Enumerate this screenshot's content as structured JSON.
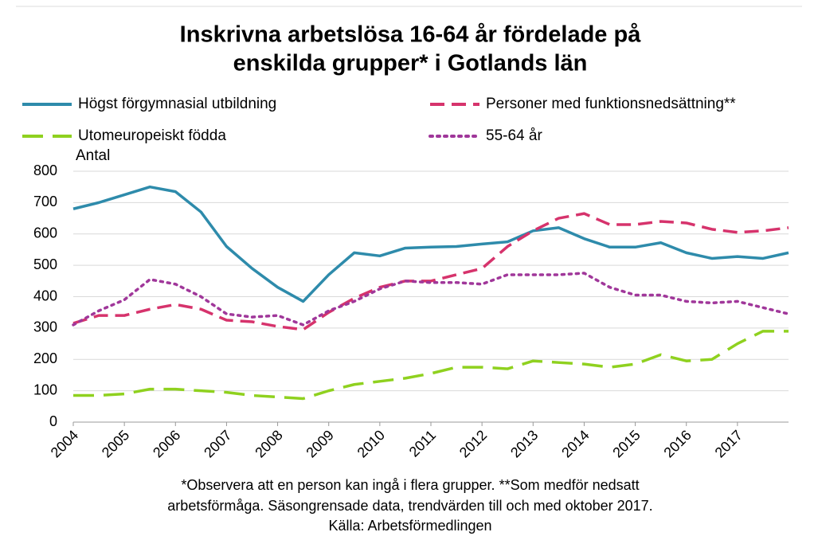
{
  "chart_data": {
    "type": "line",
    "title": [
      "Inskrivna arbetslösa 16-64 år fördelade på",
      "enskilda grupper* i Gotlands län"
    ],
    "y_label": "Antal",
    "footnote": [
      "*Observera att en person kan ingå i flera grupper. **Som medför nedsatt",
      "arbetsförmåga. Säsongrensade data, trendvärden till och med oktober 2017.",
      "Källa: Arbetsförmedlingen"
    ],
    "x": [
      2004,
      2004.5,
      2005,
      2005.5,
      2006,
      2006.5,
      2007,
      2007.5,
      2008,
      2008.5,
      2009,
      2009.5,
      2010,
      2010.5,
      2011,
      2011.5,
      2012,
      2012.5,
      2013,
      2013.5,
      2014,
      2014.5,
      2015,
      2015.5,
      2016,
      2016.5,
      2017,
      2017.5,
      2018
    ],
    "series": [
      {
        "name": "Högst förgymnasial utbildning",
        "color": "#2e8bab",
        "dash": "solid",
        "values": [
          680,
          700,
          725,
          750,
          735,
          670,
          560,
          490,
          430,
          385,
          470,
          540,
          530,
          555,
          558,
          560,
          568,
          575,
          610,
          620,
          585,
          558,
          558,
          572,
          540,
          522,
          528,
          522,
          540
        ]
      },
      {
        "name": "Personer med funktionsnedsättning**",
        "color": "#d6336c",
        "dash": "dashed",
        "values": [
          315,
          340,
          340,
          360,
          375,
          360,
          325,
          320,
          305,
          295,
          350,
          395,
          430,
          450,
          450,
          470,
          490,
          560,
          610,
          650,
          665,
          630,
          630,
          640,
          635,
          615,
          605,
          610,
          620
        ]
      },
      {
        "name": "Utomeuropeiskt födda",
        "color": "#8fd11f",
        "dash": "longdash",
        "values": [
          85,
          85,
          90,
          105,
          105,
          100,
          95,
          85,
          80,
          75,
          100,
          120,
          130,
          140,
          155,
          175,
          175,
          170,
          195,
          190,
          185,
          175,
          185,
          215,
          195,
          200,
          250,
          290,
          290
        ]
      },
      {
        "name": "55-64 år",
        "color": "#a0379a",
        "dash": "dotted",
        "values": [
          310,
          355,
          390,
          455,
          440,
          400,
          345,
          335,
          340,
          310,
          355,
          385,
          425,
          450,
          445,
          445,
          440,
          470,
          470,
          470,
          475,
          430,
          405,
          405,
          385,
          380,
          385,
          365,
          345
        ]
      }
    ],
    "xlim": [
      2004,
      2018
    ],
    "xticks": [
      2004,
      2005,
      2006,
      2007,
      2008,
      2009,
      2010,
      2011,
      2012,
      2013,
      2014,
      2015,
      2016,
      2017
    ],
    "ylim": [
      0,
      800
    ],
    "yticks": [
      0,
      100,
      200,
      300,
      400,
      500,
      600,
      700,
      800
    ],
    "grid": true
  }
}
